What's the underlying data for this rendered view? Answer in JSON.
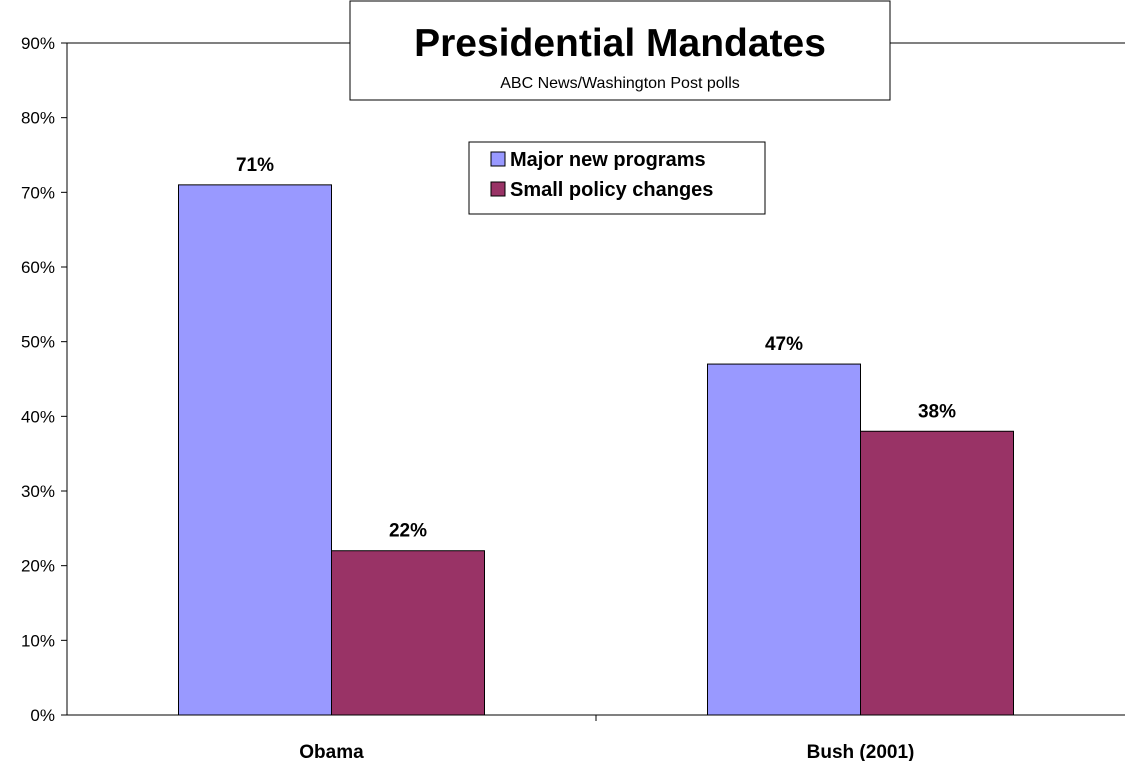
{
  "chart_data": {
    "type": "bar",
    "title": "Presidential Mandates",
    "subtitle": "ABC News/Washington Post polls",
    "categories": [
      "Obama",
      "Bush (2001)"
    ],
    "series": [
      {
        "name": "Major new programs",
        "values": [
          71,
          47
        ],
        "color": "#9999ff"
      },
      {
        "name": "Small policy changes",
        "values": [
          22,
          38
        ],
        "color": "#993366"
      }
    ],
    "data_labels": [
      [
        "71%",
        "47%"
      ],
      [
        "22%",
        "38%"
      ]
    ],
    "ylim": [
      0,
      90
    ],
    "yticks": [
      0,
      10,
      20,
      30,
      40,
      50,
      60,
      70,
      80,
      90
    ],
    "ytick_labels": [
      "0%",
      "10%",
      "20%",
      "30%",
      "40%",
      "50%",
      "60%",
      "70%",
      "80%",
      "90%"
    ],
    "xlabel": "",
    "ylabel": "",
    "grid": false,
    "legend": "top-center"
  }
}
